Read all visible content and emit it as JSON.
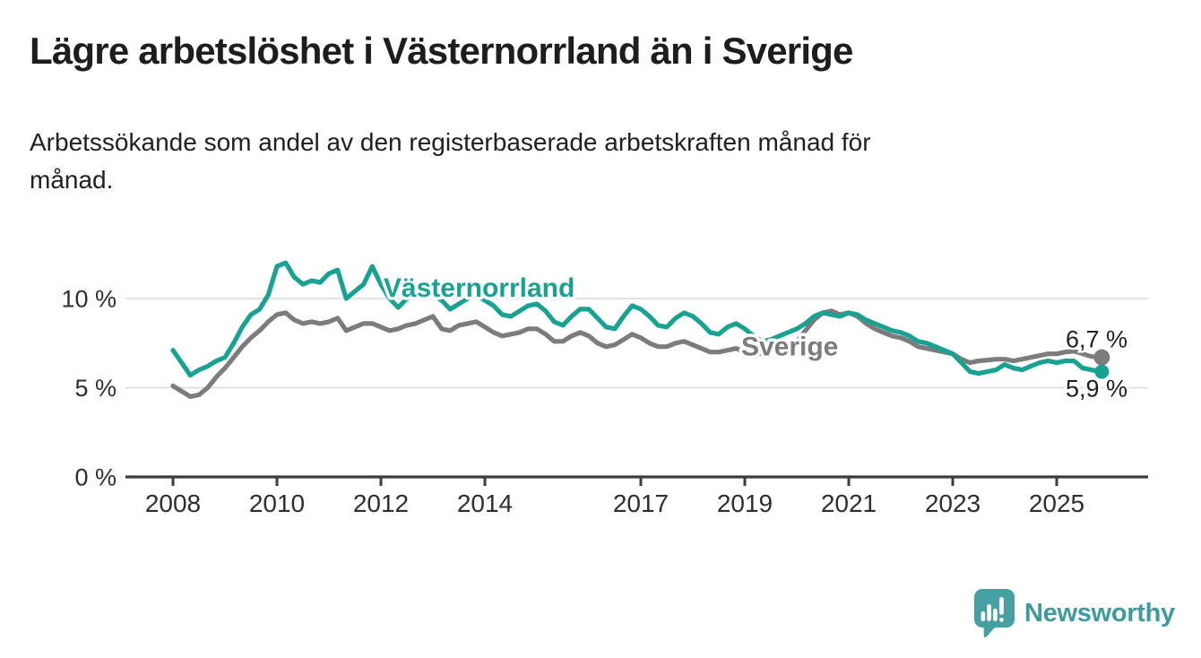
{
  "header": {
    "title": "Lägre arbetslöshet i Västernorrland än i Sverige",
    "subtitle_line1": "Arbetssökande som andel av den registerbaserade arbetskraften månad för",
    "subtitle_line2": "månad."
  },
  "chart_data": {
    "type": "line",
    "title": "Lägre arbetslöshet i Västernorrland än i Sverige",
    "xlabel": "",
    "ylabel": "Arbetssökande som andel av den registerbaserade arbetskraften",
    "x_unit": "decimal_year_monthly_samples",
    "start_year": 2008,
    "end_year_approx": 2025.9,
    "points_per_year": 6,
    "ylim": [
      0,
      12.6
    ],
    "grid": true,
    "legend_position": "inline-labels",
    "y_ticks": [
      {
        "value": 0,
        "label": "0 %"
      },
      {
        "value": 5,
        "label": "5 %"
      },
      {
        "value": 10,
        "label": "10 %"
      }
    ],
    "x_ticks": [
      {
        "year": 2008,
        "label": "2008"
      },
      {
        "year": 2010,
        "label": "2010"
      },
      {
        "year": 2012,
        "label": "2012"
      },
      {
        "year": 2014,
        "label": "2014"
      },
      {
        "year": 2017,
        "label": "2017"
      },
      {
        "year": 2019,
        "label": "2019"
      },
      {
        "year": 2021,
        "label": "2021"
      },
      {
        "year": 2023,
        "label": "2023"
      },
      {
        "year": 2025,
        "label": "2025"
      }
    ],
    "series": [
      {
        "name": "Sverige",
        "color": "#7c7c7c",
        "label_year": 2018.93,
        "label_value": 6.8,
        "end_value": 6.7,
        "end_label": "6,7 %",
        "end_label_dy": -11,
        "dot_radius": 9,
        "values": [
          5.1,
          4.8,
          4.5,
          4.6,
          5.0,
          5.6,
          6.1,
          6.7,
          7.3,
          7.8,
          8.2,
          8.7,
          9.1,
          9.2,
          8.8,
          8.6,
          8.7,
          8.6,
          8.7,
          8.9,
          8.2,
          8.4,
          8.6,
          8.6,
          8.4,
          8.2,
          8.3,
          8.5,
          8.6,
          8.8,
          9.0,
          8.3,
          8.2,
          8.5,
          8.6,
          8.7,
          8.4,
          8.1,
          7.9,
          8.0,
          8.1,
          8.3,
          8.3,
          8.0,
          7.6,
          7.6,
          7.9,
          8.1,
          7.9,
          7.5,
          7.3,
          7.4,
          7.7,
          8.0,
          7.8,
          7.5,
          7.3,
          7.3,
          7.5,
          7.6,
          7.4,
          7.2,
          7.0,
          7.0,
          7.1,
          7.2,
          7.0,
          7.0,
          6.9,
          7.0,
          7.1,
          7.3,
          7.6,
          8.2,
          8.8,
          9.2,
          9.3,
          9.1,
          9.2,
          9.0,
          8.6,
          8.3,
          8.1,
          7.9,
          7.8,
          7.6,
          7.3,
          7.2,
          7.1,
          7.0,
          6.9,
          6.6,
          6.4,
          6.5,
          6.55,
          6.6,
          6.6,
          6.5,
          6.6,
          6.7,
          6.8,
          6.9,
          6.9,
          7.0,
          7.05,
          6.9,
          6.75,
          6.7
        ]
      },
      {
        "name": "Västernorrland",
        "color": "#18a292",
        "label_year": 2012.05,
        "label_value": 10.1,
        "end_value": 5.9,
        "end_label": "5,9 %",
        "end_label_dy": 28,
        "dot_radius": 8,
        "values": [
          7.1,
          6.4,
          5.7,
          6.0,
          6.2,
          6.5,
          6.7,
          7.5,
          8.4,
          9.1,
          9.4,
          10.2,
          11.8,
          12.0,
          11.2,
          10.8,
          11.0,
          10.9,
          11.4,
          11.6,
          10.0,
          10.4,
          10.8,
          11.8,
          10.8,
          10.0,
          9.5,
          10.0,
          10.3,
          10.4,
          10.2,
          9.9,
          9.4,
          9.7,
          10.0,
          10.2,
          9.9,
          9.6,
          9.1,
          9.0,
          9.3,
          9.6,
          9.7,
          9.3,
          8.7,
          8.5,
          9.0,
          9.4,
          9.4,
          8.9,
          8.4,
          8.3,
          9.0,
          9.6,
          9.4,
          9.0,
          8.5,
          8.4,
          8.9,
          9.2,
          9.0,
          8.6,
          8.1,
          8.0,
          8.4,
          8.6,
          8.3,
          7.9,
          7.6,
          7.7,
          7.9,
          8.1,
          8.3,
          8.6,
          9.0,
          9.2,
          9.1,
          9.0,
          9.2,
          9.1,
          8.8,
          8.6,
          8.4,
          8.2,
          8.1,
          7.9,
          7.6,
          7.5,
          7.3,
          7.1,
          6.9,
          6.4,
          5.9,
          5.8,
          5.9,
          6.0,
          6.3,
          6.1,
          6.0,
          6.2,
          6.4,
          6.5,
          6.4,
          6.5,
          6.5,
          6.1,
          6.0,
          5.9
        ]
      }
    ]
  },
  "footer": {
    "brand": "Newsworthy"
  },
  "colors": {
    "teal_line": "#18a292",
    "gray_line": "#7c7c7c",
    "grid": "#dadada",
    "axis": "#3c3c3c",
    "tick_label": "#2e2e2e",
    "end_label": "#1f1f1f",
    "logo_teal": "#46a0a1",
    "brand_text": "#3d9b9d",
    "title_text": "#1d1d1d"
  }
}
